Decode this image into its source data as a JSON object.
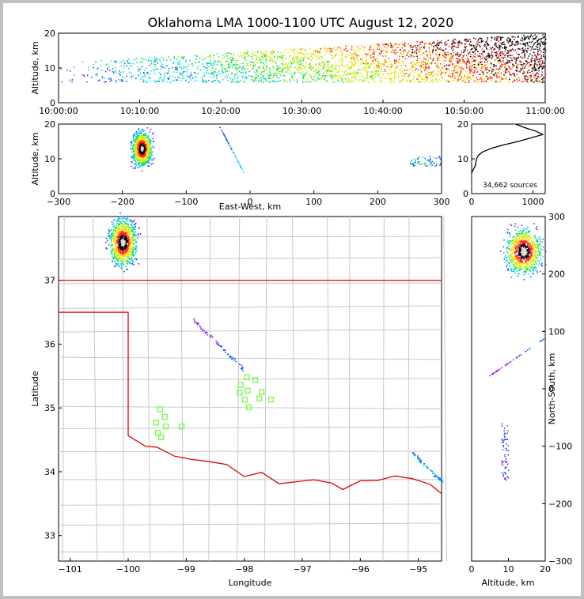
{
  "chart_data": {
    "type": "scatter",
    "title": "Oklahoma LMA 1000-1100 UTC August 12, 2020",
    "colors": {
      "frame": "#c0c0c0",
      "state_line": "#e00000",
      "county_line": "#c8c8c8",
      "station": "#66ff33"
    },
    "panels": {
      "time_height": {
        "xlabel": "",
        "ylabel": "Altitude, km",
        "x_ticks": [
          "10:00:00",
          "10:10:00",
          "10:20:00",
          "10:30:00",
          "10:40:00",
          "10:50:00",
          "11:00:00"
        ],
        "y_ticks": [
          "0",
          "10",
          "20"
        ],
        "xlim_min": [
          0,
          60
        ],
        "ylim": [
          0,
          20
        ]
      },
      "ew_height": {
        "xlabel": "East-West, km",
        "ylabel": "Altitude, km",
        "x_ticks": [
          "−300",
          "−200",
          "−100",
          "0",
          "100",
          "200",
          "300"
        ],
        "y_ticks": [
          "0",
          "10",
          "20"
        ],
        "xlim": [
          -300,
          300
        ],
        "ylim": [
          0,
          20
        ]
      },
      "alt_hist": {
        "x_ticks": [
          "0",
          "1000"
        ],
        "y_ticks": [
          "0",
          "10",
          "20"
        ],
        "xlim": [
          0,
          1200
        ],
        "ylim": [
          0,
          20
        ],
        "annotation": "34,662 sources",
        "profile": [
          [
            0,
            6
          ],
          [
            30,
            7
          ],
          [
            60,
            8
          ],
          [
            80,
            10
          ],
          [
            110,
            11
          ],
          [
            180,
            12
          ],
          [
            320,
            13
          ],
          [
            520,
            14
          ],
          [
            760,
            15
          ],
          [
            960,
            16
          ],
          [
            1160,
            17
          ],
          [
            1040,
            18
          ],
          [
            860,
            19
          ],
          [
            720,
            20
          ]
        ]
      },
      "plan_view": {
        "xlabel": "Longitude",
        "ylabel": "Latitude",
        "x_ticks": [
          "−101",
          "−100",
          "−99",
          "−98",
          "−97",
          "−96",
          "−95"
        ],
        "y_ticks": [
          "33",
          "34",
          "35",
          "36",
          "37"
        ],
        "xlim": [
          -101.2,
          -94.6
        ],
        "ylim": [
          32.6,
          38.0
        ],
        "stations": [
          [
            -97.81,
            35.44
          ],
          [
            -97.96,
            35.48
          ],
          [
            -98.06,
            35.36
          ],
          [
            -97.94,
            35.27
          ],
          [
            -98.08,
            35.24
          ],
          [
            -97.7,
            35.25
          ],
          [
            -97.74,
            35.15
          ],
          [
            -97.54,
            35.13
          ],
          [
            -97.99,
            35.13
          ],
          [
            -97.92,
            35.01
          ],
          [
            -99.45,
            34.98
          ],
          [
            -99.37,
            34.86
          ],
          [
            -99.52,
            34.77
          ],
          [
            -99.35,
            34.71
          ],
          [
            -99.08,
            34.71
          ],
          [
            -99.49,
            34.61
          ],
          [
            -99.43,
            34.54
          ]
        ]
      },
      "ns_height": {
        "xlabel": "Altitude, km",
        "ylabel": "North-South, km",
        "x_ticks": [
          "0",
          "10",
          "20"
        ],
        "y_ticks": [
          "−300",
          "−200",
          "−100",
          "0",
          "100",
          "200",
          "300"
        ],
        "xlim": [
          0,
          20
        ],
        "ylim": [
          -300,
          300
        ]
      }
    }
  }
}
